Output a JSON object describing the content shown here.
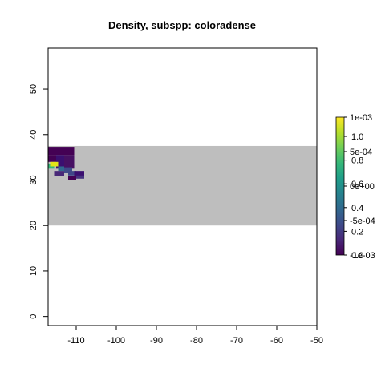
{
  "chart_data": {
    "type": "heatmap",
    "title": "Density, subspp: coloradense",
    "xlabel": "",
    "ylabel": "",
    "xlim": [
      -117,
      -50
    ],
    "ylim": [
      -2,
      59
    ],
    "x_ticks": [
      -110,
      -100,
      -90,
      -80,
      -70,
      -60,
      -50
    ],
    "y_ticks": [
      0,
      10,
      20,
      30,
      40,
      50
    ],
    "x_tick_labels": [
      "-110",
      "-100",
      "-90",
      "-80",
      "-70",
      "-60",
      "-50"
    ],
    "y_tick_labels": [
      "0",
      "10",
      "20",
      "30",
      "40",
      "50"
    ],
    "grid": false,
    "background_region": {
      "x": [
        -117,
        -50
      ],
      "y": [
        20,
        37.5
      ],
      "color": "#bebebe"
    },
    "cells": [
      {
        "x": [
          -117,
          -110.5
        ],
        "y": [
          35.5,
          37.3
        ],
        "color": "#440154"
      },
      {
        "x": [
          -115,
          -113
        ],
        "y": [
          32.5,
          35.5
        ],
        "color": "#3b0f70"
      },
      {
        "x": [
          -113,
          -110.5
        ],
        "y": [
          32.5,
          35.5
        ],
        "color": "#471063"
      },
      {
        "x": [
          -117,
          -115
        ],
        "y": [
          34.0,
          35.5
        ],
        "color": "#440154"
      },
      {
        "x": [
          -117,
          -115.5
        ],
        "y": [
          32.5,
          33.5
        ],
        "color": "#35b779"
      },
      {
        "x": [
          -116.5,
          -114.5
        ],
        "y": [
          33.0,
          34.0
        ],
        "color": "#e3e418"
      },
      {
        "x": [
          -114.5,
          -113
        ],
        "y": [
          32.0,
          33.0
        ],
        "color": "#31688e"
      },
      {
        "x": [
          -113,
          -111
        ],
        "y": [
          31.5,
          32.8
        ],
        "color": "#3e4a89"
      },
      {
        "x": [
          -115.5,
          -113
        ],
        "y": [
          30.8,
          32.0
        ],
        "color": "#482878"
      },
      {
        "x": [
          -112,
          -110
        ],
        "y": [
          31.0,
          32.0
        ],
        "color": "#404688"
      },
      {
        "x": [
          -110.5,
          -108
        ],
        "y": [
          30.5,
          32.0
        ],
        "color": "#3b0f70"
      },
      {
        "x": [
          -112,
          -110
        ],
        "y": [
          30.0,
          30.8
        ],
        "color": "#440154"
      },
      {
        "x": [
          -110,
          -108
        ],
        "y": [
          30.3,
          31.0
        ],
        "color": "#46337f"
      }
    ],
    "legend": {
      "placement": "right",
      "inner_labels": [
        "1e-03",
        "5e-04",
        "0e+00",
        "-5e-04",
        "-1e-03"
      ],
      "inner_values": [
        0.001,
        0.0005,
        0.0,
        -0.0005,
        -0.001
      ],
      "outer_labels": [
        "1.0",
        "0.8",
        "0.6",
        "0.4",
        "0.2",
        "0.0"
      ],
      "outer_values": [
        1.0,
        0.8,
        0.6,
        0.4,
        0.2,
        0.0
      ],
      "colors": [
        "#440154",
        "#482878",
        "#3e4a89",
        "#31688e",
        "#26828e",
        "#1f9e89",
        "#35b779",
        "#6ece58",
        "#b5de2b",
        "#fde725"
      ]
    }
  }
}
